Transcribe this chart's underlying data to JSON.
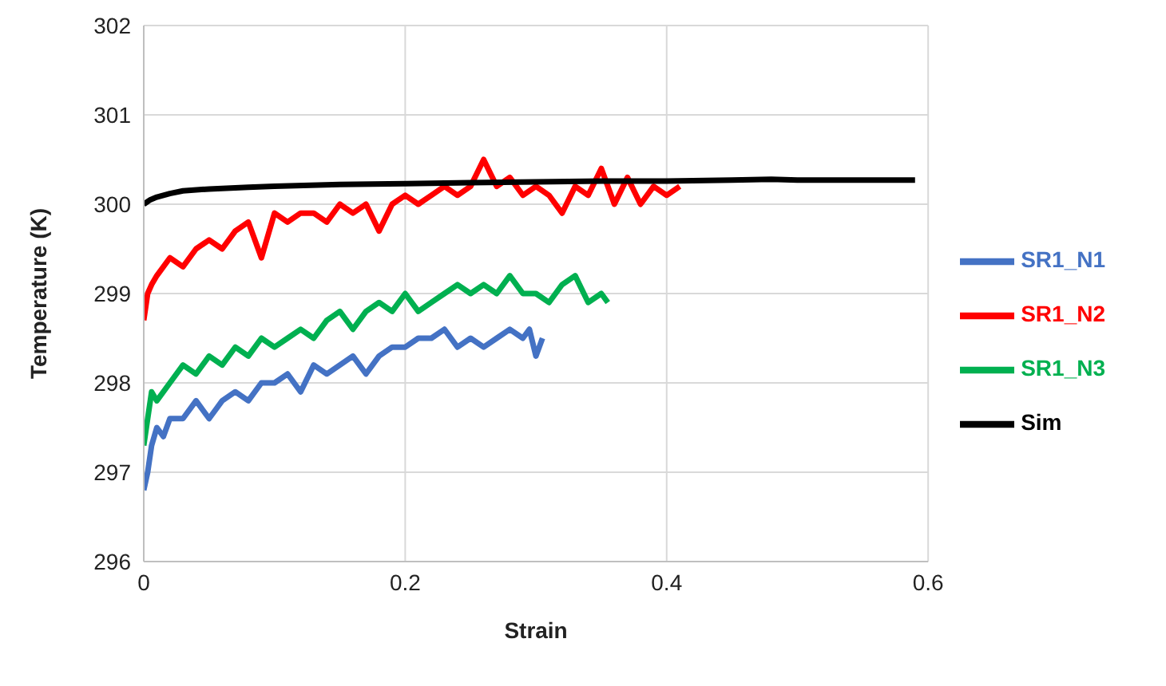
{
  "chart_data": {
    "type": "line",
    "xlabel": "Strain",
    "ylabel": "Temperature (K)",
    "xlim": [
      0,
      0.6
    ],
    "xticks": [
      0,
      0.2,
      0.4,
      0.6
    ],
    "ylim": [
      296,
      302
    ],
    "yticks": [
      296,
      297,
      298,
      299,
      300,
      301,
      302
    ],
    "grid": true,
    "legend": "right",
    "marker": "none",
    "line_style": "solid",
    "series": [
      {
        "name": "SR1_N1",
        "color": "#4472c4",
        "x": [
          0,
          0.003,
          0.006,
          0.01,
          0.015,
          0.02,
          0.03,
          0.04,
          0.05,
          0.06,
          0.07,
          0.08,
          0.09,
          0.1,
          0.11,
          0.12,
          0.13,
          0.14,
          0.15,
          0.16,
          0.17,
          0.18,
          0.19,
          0.2,
          0.21,
          0.22,
          0.23,
          0.24,
          0.25,
          0.26,
          0.27,
          0.28,
          0.29,
          0.295,
          0.3,
          0.305
        ],
        "values": [
          296.8,
          297.0,
          297.3,
          297.5,
          297.4,
          297.6,
          297.6,
          297.8,
          297.6,
          297.8,
          297.9,
          297.8,
          298.0,
          298.0,
          298.1,
          297.9,
          298.2,
          298.1,
          298.2,
          298.3,
          298.1,
          298.3,
          298.4,
          298.4,
          298.5,
          298.5,
          298.6,
          298.4,
          298.5,
          298.4,
          298.5,
          298.6,
          298.5,
          298.6,
          298.3,
          298.5
        ]
      },
      {
        "name": "SR1_N2",
        "color": "#ff0000",
        "x": [
          0,
          0.003,
          0.006,
          0.01,
          0.02,
          0.03,
          0.04,
          0.05,
          0.06,
          0.07,
          0.08,
          0.09,
          0.1,
          0.11,
          0.12,
          0.13,
          0.14,
          0.15,
          0.16,
          0.17,
          0.18,
          0.19,
          0.2,
          0.21,
          0.22,
          0.23,
          0.24,
          0.25,
          0.26,
          0.27,
          0.28,
          0.29,
          0.3,
          0.31,
          0.32,
          0.33,
          0.34,
          0.35,
          0.36,
          0.37,
          0.38,
          0.39,
          0.4,
          0.41
        ],
        "values": [
          298.7,
          299.0,
          299.1,
          299.2,
          299.4,
          299.3,
          299.5,
          299.6,
          299.5,
          299.7,
          299.8,
          299.4,
          299.9,
          299.8,
          299.9,
          299.9,
          299.8,
          300.0,
          299.9,
          300.0,
          299.7,
          300.0,
          300.1,
          300.0,
          300.1,
          300.2,
          300.1,
          300.2,
          300.5,
          300.2,
          300.3,
          300.1,
          300.2,
          300.1,
          299.9,
          300.2,
          300.1,
          300.4,
          300.0,
          300.3,
          300.0,
          300.2,
          300.1,
          300.2
        ]
      },
      {
        "name": "SR1_N3",
        "color": "#00b050",
        "x": [
          0,
          0.003,
          0.006,
          0.01,
          0.02,
          0.03,
          0.04,
          0.05,
          0.06,
          0.07,
          0.08,
          0.09,
          0.1,
          0.11,
          0.12,
          0.13,
          0.14,
          0.15,
          0.16,
          0.17,
          0.18,
          0.19,
          0.2,
          0.21,
          0.22,
          0.23,
          0.24,
          0.25,
          0.26,
          0.27,
          0.28,
          0.29,
          0.3,
          0.31,
          0.32,
          0.33,
          0.34,
          0.35,
          0.355
        ],
        "values": [
          297.3,
          297.6,
          297.9,
          297.8,
          298.0,
          298.2,
          298.1,
          298.3,
          298.2,
          298.4,
          298.3,
          298.5,
          298.4,
          298.5,
          298.6,
          298.5,
          298.7,
          298.8,
          298.6,
          298.8,
          298.9,
          298.8,
          299.0,
          298.8,
          298.9,
          299.0,
          299.1,
          299.0,
          299.1,
          299.0,
          299.2,
          299.0,
          299.0,
          298.9,
          299.1,
          299.2,
          298.9,
          299.0,
          298.9
        ]
      },
      {
        "name": "Sim",
        "color": "#000000",
        "x": [
          0,
          0.005,
          0.01,
          0.02,
          0.03,
          0.05,
          0.08,
          0.1,
          0.15,
          0.2,
          0.25,
          0.3,
          0.35,
          0.4,
          0.45,
          0.48,
          0.5,
          0.55,
          0.59
        ],
        "values": [
          300.0,
          300.05,
          300.08,
          300.12,
          300.15,
          300.17,
          300.19,
          300.2,
          300.22,
          300.23,
          300.24,
          300.25,
          300.26,
          300.26,
          300.27,
          300.28,
          300.27,
          300.27,
          300.27
        ]
      }
    ]
  }
}
